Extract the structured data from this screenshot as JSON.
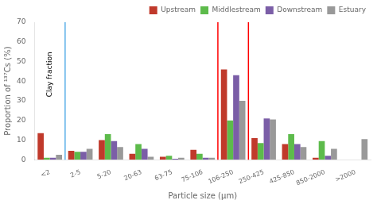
{
  "chart_data": {
    "type": "bar",
    "categories": [
      "<2",
      "2-5",
      "5-20",
      "20-63",
      "63-75",
      "75-106",
      "106-250",
      "250-425",
      "425-850",
      "850-2000",
      ">2000"
    ],
    "series": [
      {
        "name": "Upstream",
        "color": "#c0392b",
        "values": [
          13.5,
          4.5,
          10.0,
          3.0,
          1.5,
          5.0,
          46.0,
          11.0,
          8.0,
          1.0,
          0.0
        ]
      },
      {
        "name": "Middlestream",
        "color": "#5dbb4b",
        "values": [
          1.0,
          4.0,
          13.0,
          8.0,
          2.0,
          3.0,
          20.0,
          8.5,
          13.0,
          9.5,
          0.0
        ]
      },
      {
        "name": "Downstream",
        "color": "#7b5ea7",
        "values": [
          1.0,
          4.0,
          9.5,
          5.5,
          0.5,
          1.0,
          43.0,
          21.0,
          8.0,
          2.0,
          0.0
        ]
      },
      {
        "name": "Estuary",
        "color": "#999999",
        "values": [
          2.5,
          5.5,
          6.5,
          1.5,
          1.0,
          1.0,
          30.0,
          20.5,
          6.5,
          5.5,
          10.5
        ]
      }
    ],
    "xlabel": "Particle size (μm)",
    "ylabel": "Proportion of ¹³⁷Cs (%)",
    "ylim": [
      0,
      70
    ],
    "yticks": [
      0,
      10,
      20,
      30,
      40,
      50,
      60,
      70
    ],
    "grid": false,
    "legend": "upper right",
    "annotations": [
      {
        "text": "Clay fraction"
      },
      {
        "type": "line",
        "between": [
          "<2",
          "2-5"
        ],
        "color": "#5aafe8"
      },
      {
        "type": "line",
        "between": [
          "75-106",
          "106-250"
        ],
        "color": "red"
      },
      {
        "type": "line",
        "between": [
          "106-250",
          "250-425"
        ],
        "color": "red"
      }
    ]
  }
}
